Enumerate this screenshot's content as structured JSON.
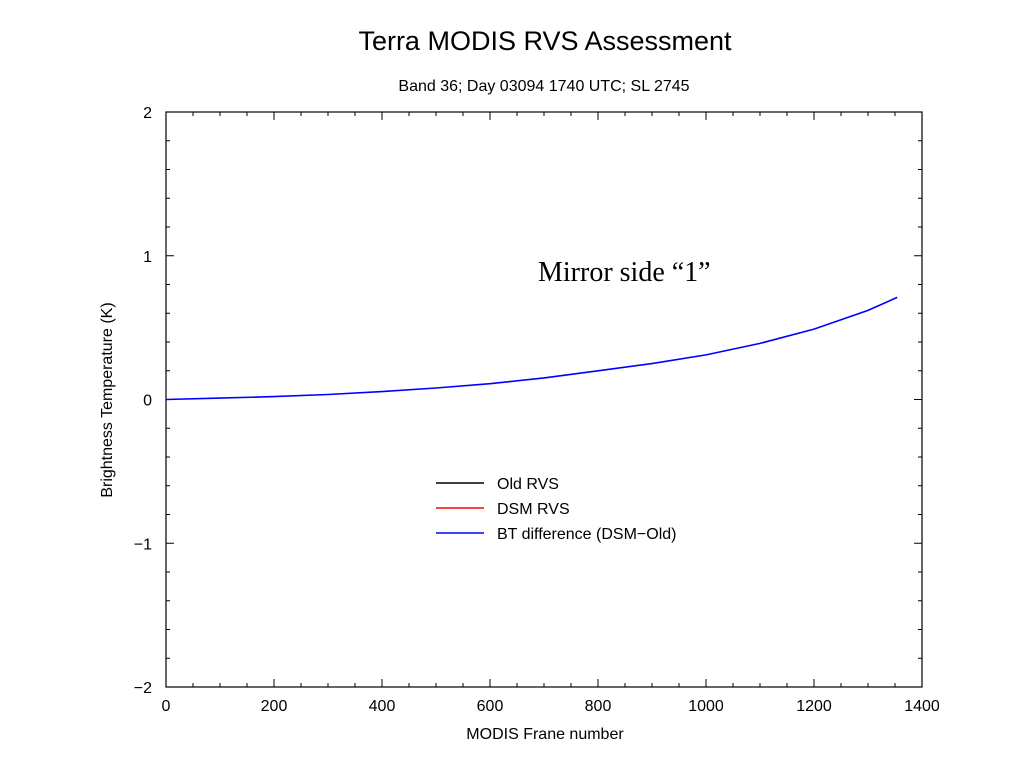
{
  "chart_data": {
    "type": "line",
    "title": "Terra MODIS RVS Assessment",
    "subtitle": "Band 36; Day 03094 1740 UTC; SL 2745",
    "xlabel": "MODIS Frane number",
    "ylabel": "Brightness Temperature (K)",
    "xlim": [
      0,
      1400
    ],
    "ylim": [
      -2,
      2
    ],
    "xticks": [
      0,
      200,
      400,
      600,
      800,
      1000,
      1200,
      1400
    ],
    "yticks": [
      -2,
      -1,
      0,
      1,
      2
    ],
    "xtick_labels": [
      "0",
      "200",
      "400",
      "600",
      "800",
      "1000",
      "1200",
      "1400"
    ],
    "ytick_labels": [
      "−2",
      "−1",
      "0",
      "1",
      "2"
    ],
    "grid": false,
    "legend_position": "center",
    "annotation": "Mirror side “1”",
    "series": [
      {
        "name": "Old RVS",
        "color": "#000000",
        "x": [],
        "y": []
      },
      {
        "name": "DSM RVS",
        "color": "#ff0000",
        "x": [],
        "y": []
      },
      {
        "name": "BT difference (DSM−Old)",
        "color": "#0000ff",
        "x": [
          0,
          100,
          200,
          300,
          400,
          500,
          600,
          700,
          800,
          900,
          1000,
          1100,
          1200,
          1300,
          1354
        ],
        "y": [
          0.0,
          0.01,
          0.02,
          0.035,
          0.055,
          0.08,
          0.11,
          0.15,
          0.2,
          0.25,
          0.31,
          0.39,
          0.49,
          0.62,
          0.71
        ]
      }
    ]
  }
}
